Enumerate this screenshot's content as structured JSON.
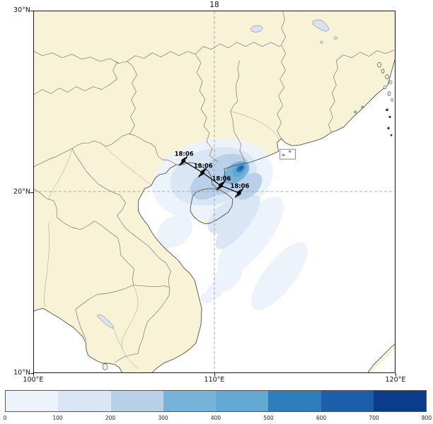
{
  "title": "18",
  "map": {
    "lon_min": 100,
    "lon_max": 120,
    "lat_min": 10,
    "lat_max": 30,
    "x_ticks": [
      {
        "label": "100°E",
        "lon": 100
      },
      {
        "label": "110°E",
        "lon": 110
      },
      {
        "label": "120°E",
        "lon": 120
      }
    ],
    "y_ticks": [
      {
        "label": "30°N",
        "lat": 30
      },
      {
        "label": "20°N",
        "lat": 20
      },
      {
        "label": "10°N",
        "lat": 10
      }
    ],
    "grid_lons": [
      110
    ],
    "grid_lats": [
      20
    ],
    "land_color": "#f8f2d7",
    "ocean_color": "#ffffff",
    "coast_color": "#3f3f3f",
    "border_color": "#5a5a5a",
    "lake_color": "#dce1f2",
    "gridline_color": "#909090"
  },
  "track": {
    "marker": "typhoon-symbol",
    "marker_color": "#000000",
    "points": [
      {
        "label": "18:06",
        "lon": 108.28,
        "lat": 21.7
      },
      {
        "label": "18:06",
        "lon": 109.34,
        "lat": 21.05
      },
      {
        "label": "18:06",
        "lon": 110.35,
        "lat": 20.33
      },
      {
        "label": "18:06",
        "lon": 111.37,
        "lat": 19.92
      }
    ]
  },
  "colorbar": {
    "tick_labels": [
      "0",
      "100",
      "200",
      "300",
      "400",
      "500",
      "600",
      "700",
      "800"
    ],
    "colors": [
      "#edf3fb",
      "#dae6f3",
      "#b8d1e9",
      "#77b2d8",
      "#62a8d2",
      "#2e7ebd",
      "#1b5fac",
      "#0c3d8c"
    ]
  },
  "chart_data": {
    "type": "heatmap",
    "title": "18",
    "lon_range": [
      100,
      120
    ],
    "lat_range": [
      10,
      30
    ],
    "colorbar_ticks": [
      0,
      100,
      200,
      300,
      400,
      500,
      600,
      700,
      800
    ],
    "colorbar_colors": [
      "#edf3fb",
      "#dae6f3",
      "#b8d1e9",
      "#77b2d8",
      "#62a8d2",
      "#2e7ebd",
      "#1b5fac",
      "#0c3d8c"
    ],
    "shading_max_center": {
      "lon": 111.45,
      "lat": 21.3
    },
    "precip_blobs": [
      {
        "lon": 109.9,
        "lat": 20.7,
        "rx": 3.4,
        "ry": 2.2,
        "rot": -12,
        "level": 0
      },
      {
        "lon": 107.8,
        "lat": 17.8,
        "rx": 1.1,
        "ry": 0.8,
        "rot": -40,
        "level": 0
      },
      {
        "lon": 112.0,
        "lat": 17.5,
        "rx": 2.7,
        "ry": 1.0,
        "rot": -52,
        "level": 0
      },
      {
        "lon": 113.6,
        "lat": 15.3,
        "rx": 2.3,
        "ry": 0.85,
        "rot": -52,
        "level": 0
      },
      {
        "lon": 110.7,
        "lat": 15.2,
        "rx": 0.95,
        "ry": 0.6,
        "rot": -40,
        "level": 0
      },
      {
        "lon": 110.05,
        "lat": 14.5,
        "rx": 0.55,
        "ry": 0.4,
        "rot": -40,
        "level": 0
      },
      {
        "lon": 109.6,
        "lat": 14.1,
        "rx": 0.38,
        "ry": 0.3,
        "rot": 0,
        "level": 0
      },
      {
        "lon": 109.95,
        "lat": 20.85,
        "rx": 2.45,
        "ry": 1.55,
        "rot": -15,
        "level": 1
      },
      {
        "lon": 111.3,
        "lat": 18.3,
        "rx": 1.85,
        "ry": 0.6,
        "rot": -52,
        "level": 1
      },
      {
        "lon": 110.85,
        "lat": 18.65,
        "rx": 1.4,
        "ry": 0.75,
        "rot": -35,
        "level": 1
      },
      {
        "lon": 110.55,
        "lat": 20.95,
        "rx": 1.5,
        "ry": 1.02,
        "rot": -28,
        "level": 2
      },
      {
        "lon": 109.6,
        "lat": 20.35,
        "rx": 1.0,
        "ry": 0.72,
        "rot": -30,
        "level": 2
      },
      {
        "lon": 111.9,
        "lat": 20.3,
        "rx": 0.9,
        "ry": 0.55,
        "rot": -45,
        "level": 2
      },
      {
        "lon": 111.2,
        "lat": 21.05,
        "rx": 0.82,
        "ry": 0.5,
        "rot": -38,
        "level": 3
      },
      {
        "lon": 111.38,
        "lat": 21.2,
        "rx": 0.46,
        "ry": 0.3,
        "rot": -38,
        "level": 4
      },
      {
        "lon": 111.44,
        "lat": 21.27,
        "rx": 0.26,
        "ry": 0.17,
        "rot": -38,
        "level": 5
      },
      {
        "lon": 111.47,
        "lat": 21.3,
        "rx": 0.13,
        "ry": 0.08,
        "rot": -38,
        "level": 6
      }
    ]
  }
}
